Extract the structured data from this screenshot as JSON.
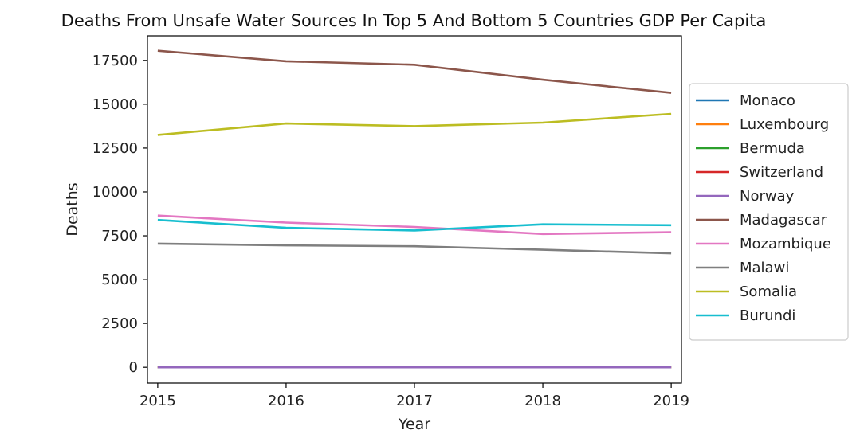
{
  "chart_data": {
    "type": "line",
    "title": "Deaths From Unsafe Water Sources In Top 5 And Bottom 5 Countries GDP Per Capita",
    "xlabel": "Year",
    "ylabel": "Deaths",
    "x": [
      2015,
      2016,
      2017,
      2018,
      2019
    ],
    "xticks": [
      "2015",
      "2016",
      "2017",
      "2018",
      "2019"
    ],
    "yticks": [
      0,
      2500,
      5000,
      7500,
      10000,
      12500,
      15000,
      17500
    ],
    "ytick_labels": [
      "0",
      "2500",
      "5000",
      "7500",
      "10000",
      "12500",
      "15000",
      "17500"
    ],
    "xlim": [
      2014.92,
      2019.08
    ],
    "ylim": [
      -900,
      18900
    ],
    "grid": false,
    "legend_position": "right, outside plot",
    "series": [
      {
        "name": "Monaco",
        "color": "#1f77b4",
        "values": [
          0,
          0,
          0,
          0,
          0
        ]
      },
      {
        "name": "Luxembourg",
        "color": "#ff7f0e",
        "values": [
          0,
          0,
          0,
          0,
          0
        ]
      },
      {
        "name": "Bermuda",
        "color": "#2ca02c",
        "values": [
          0,
          0,
          0,
          0,
          0
        ]
      },
      {
        "name": "Switzerland",
        "color": "#d62728",
        "values": [
          0,
          0,
          0,
          0,
          0
        ]
      },
      {
        "name": "Norway",
        "color": "#9467bd",
        "values": [
          0,
          0,
          0,
          0,
          0
        ]
      },
      {
        "name": "Madagascar",
        "color": "#8c564b",
        "values": [
          18050,
          17450,
          17250,
          16400,
          15650
        ]
      },
      {
        "name": "Mozambique",
        "color": "#e377c2",
        "values": [
          8650,
          8250,
          8000,
          7600,
          7700
        ]
      },
      {
        "name": "Malawi",
        "color": "#7f7f7f",
        "values": [
          7050,
          6950,
          6900,
          6700,
          6500
        ]
      },
      {
        "name": "Somalia",
        "color": "#bcbd22",
        "values": [
          13250,
          13900,
          13750,
          13950,
          14450
        ]
      },
      {
        "name": "Burundi",
        "color": "#17becf",
        "values": [
          8400,
          7950,
          7800,
          8150,
          8100
        ]
      }
    ]
  }
}
